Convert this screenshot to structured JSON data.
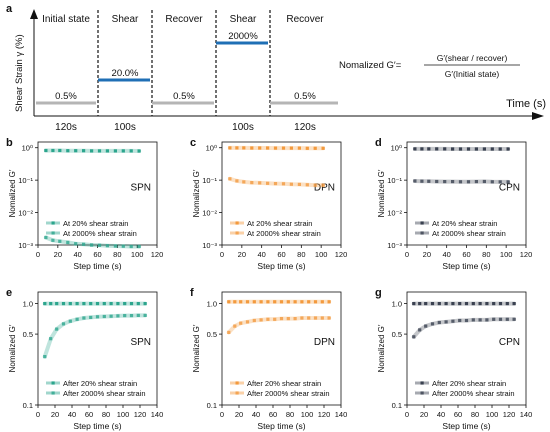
{
  "colors": {
    "spn": "#2ca58d",
    "dpn": "#f39a3e",
    "cpn": "#3a4150",
    "bar_blue": "#1f6fb5",
    "bar_grey": "#b5b5b5"
  },
  "schematic": {
    "panel_label": "a",
    "ylabel": "Shear Strain γ (%)",
    "xlabel": "Time (s)",
    "phases": [
      {
        "name": "Initial state",
        "strain": "0.5%",
        "duration": "120s",
        "level": "low"
      },
      {
        "name": "Shear",
        "strain": "20.0%",
        "duration": "100s",
        "level": "mid"
      },
      {
        "name": "Recover",
        "strain": "0.5%",
        "duration": "",
        "level": "low"
      },
      {
        "name": "Shear",
        "strain": "2000%",
        "duration": "100s",
        "level": "high"
      },
      {
        "name": "Recover",
        "strain": "0.5%",
        "duration": "120s",
        "level": "low"
      }
    ],
    "formula": {
      "left": "Nomalized G′=",
      "numerator": "G′(shear / recover)",
      "denominator": "G′(Initial state)"
    }
  },
  "chart_data": [
    {
      "panel": "b",
      "type": "line",
      "name_label": "SPN",
      "color_key": "spn",
      "xlabel": "Step time (s)",
      "ylabel": "Nomalized G′",
      "yscale": "log",
      "xlim": [
        0,
        120
      ],
      "xticks": [
        0,
        20,
        40,
        60,
        80,
        100,
        120
      ],
      "ylim": [
        0.001,
        1.5
      ],
      "yticks": [
        0.001,
        0.01,
        0.1,
        1
      ],
      "ytick_labels": [
        "10⁻³",
        "10⁻²",
        "10⁻¹",
        "10⁰"
      ],
      "series": [
        {
          "name": "At 20% shear strain",
          "points": [
            [
              8,
              0.82
            ],
            [
              15,
              0.82
            ],
            [
              22,
              0.82
            ],
            [
              30,
              0.81
            ],
            [
              38,
              0.81
            ],
            [
              46,
              0.81
            ],
            [
              54,
              0.8
            ],
            [
              62,
              0.8
            ],
            [
              70,
              0.8
            ],
            [
              78,
              0.8
            ],
            [
              86,
              0.8
            ],
            [
              94,
              0.8
            ],
            [
              102,
              0.79
            ]
          ]
        },
        {
          "name": "At 2000% shear strain",
          "points": [
            [
              8,
              0.0017
            ],
            [
              15,
              0.0014
            ],
            [
              22,
              0.0013
            ],
            [
              30,
              0.0012
            ],
            [
              38,
              0.0011
            ],
            [
              46,
              0.00105
            ],
            [
              54,
              0.001
            ],
            [
              62,
              0.00098
            ],
            [
              70,
              0.00095
            ],
            [
              78,
              0.00093
            ],
            [
              86,
              0.00092
            ],
            [
              94,
              0.0009
            ],
            [
              102,
              0.0009
            ]
          ]
        }
      ]
    },
    {
      "panel": "c",
      "type": "line",
      "name_label": "DPN",
      "color_key": "dpn",
      "xlabel": "Step time (s)",
      "ylabel": "Nomalized G′",
      "yscale": "log",
      "xlim": [
        0,
        120
      ],
      "xticks": [
        0,
        20,
        40,
        60,
        80,
        100,
        120
      ],
      "ylim": [
        0.001,
        1.5
      ],
      "yticks": [
        0.001,
        0.01,
        0.1,
        1
      ],
      "ytick_labels": [
        "10⁻³",
        "10⁻²",
        "10⁻¹",
        "10⁰"
      ],
      "series": [
        {
          "name": "At 20% shear strain",
          "points": [
            [
              8,
              0.99
            ],
            [
              15,
              0.99
            ],
            [
              22,
              0.99
            ],
            [
              30,
              0.98
            ],
            [
              38,
              0.98
            ],
            [
              46,
              0.98
            ],
            [
              54,
              0.97
            ],
            [
              62,
              0.97
            ],
            [
              70,
              0.97
            ],
            [
              78,
              0.97
            ],
            [
              86,
              0.96
            ],
            [
              94,
              0.96
            ],
            [
              102,
              0.96
            ]
          ]
        },
        {
          "name": "At 2000% shear strain",
          "points": [
            [
              8,
              0.11
            ],
            [
              15,
              0.095
            ],
            [
              22,
              0.088
            ],
            [
              30,
              0.084
            ],
            [
              38,
              0.082
            ],
            [
              46,
              0.08
            ],
            [
              54,
              0.078
            ],
            [
              62,
              0.077
            ],
            [
              70,
              0.075
            ],
            [
              78,
              0.074
            ],
            [
              86,
              0.072
            ],
            [
              94,
              0.07
            ],
            [
              102,
              0.07
            ]
          ]
        }
      ]
    },
    {
      "panel": "d",
      "type": "line",
      "name_label": "CPN",
      "color_key": "cpn",
      "xlabel": "Step time (s)",
      "ylabel": "Nomalized G′",
      "yscale": "log",
      "xlim": [
        0,
        120
      ],
      "xticks": [
        0,
        20,
        40,
        60,
        80,
        100,
        120
      ],
      "ylim": [
        0.001,
        1.5
      ],
      "yticks": [
        0.001,
        0.01,
        0.1,
        1
      ],
      "ytick_labels": [
        "10⁻³",
        "10⁻²",
        "10⁻¹",
        "10⁰"
      ],
      "series": [
        {
          "name": "At 20% shear strain",
          "points": [
            [
              8,
              0.92
            ],
            [
              15,
              0.92
            ],
            [
              22,
              0.92
            ],
            [
              30,
              0.92
            ],
            [
              38,
              0.92
            ],
            [
              46,
              0.91
            ],
            [
              54,
              0.91
            ],
            [
              62,
              0.91
            ],
            [
              70,
              0.91
            ],
            [
              78,
              0.91
            ],
            [
              86,
              0.91
            ],
            [
              94,
              0.91
            ],
            [
              102,
              0.91
            ]
          ]
        },
        {
          "name": "At 2000% shear strain",
          "points": [
            [
              8,
              0.094
            ],
            [
              15,
              0.093
            ],
            [
              22,
              0.092
            ],
            [
              30,
              0.091
            ],
            [
              38,
              0.09
            ],
            [
              46,
              0.09
            ],
            [
              54,
              0.089
            ],
            [
              62,
              0.089
            ],
            [
              70,
              0.09
            ],
            [
              78,
              0.091
            ],
            [
              86,
              0.089
            ],
            [
              94,
              0.088
            ],
            [
              102,
              0.088
            ]
          ]
        }
      ]
    },
    {
      "panel": "e",
      "type": "line",
      "name_label": "SPN",
      "color_key": "spn",
      "xlabel": "Step time (s)",
      "ylabel": "Nomalized G′",
      "yscale": "log",
      "xlim": [
        0,
        140
      ],
      "xticks": [
        0,
        20,
        40,
        60,
        80,
        100,
        120,
        140
      ],
      "ylim": [
        0.1,
        1.3
      ],
      "yticks": [
        0.1,
        0.5,
        1
      ],
      "ytick_labels": [
        "0.1",
        "0.5",
        "1.0"
      ],
      "series": [
        {
          "name": "After 20% shear strain",
          "points": [
            [
              8,
              1.0
            ],
            [
              15,
              1.0
            ],
            [
              22,
              1.0
            ],
            [
              30,
              1.0
            ],
            [
              38,
              1.0
            ],
            [
              46,
              1.0
            ],
            [
              54,
              1.0
            ],
            [
              62,
              1.0
            ],
            [
              70,
              1.0
            ],
            [
              78,
              1.0
            ],
            [
              86,
              1.0
            ],
            [
              94,
              1.0
            ],
            [
              102,
              1.0
            ],
            [
              110,
              1.0
            ],
            [
              118,
              1.0
            ],
            [
              126,
              1.0
            ]
          ]
        },
        {
          "name": "After 2000% shear strain",
          "points": [
            [
              8,
              0.3
            ],
            [
              15,
              0.45
            ],
            [
              22,
              0.56
            ],
            [
              30,
              0.63
            ],
            [
              38,
              0.67
            ],
            [
              46,
              0.7
            ],
            [
              54,
              0.72
            ],
            [
              62,
              0.73
            ],
            [
              70,
              0.74
            ],
            [
              78,
              0.745
            ],
            [
              86,
              0.75
            ],
            [
              94,
              0.755
            ],
            [
              102,
              0.76
            ],
            [
              110,
              0.76
            ],
            [
              118,
              0.765
            ],
            [
              126,
              0.765
            ]
          ]
        }
      ]
    },
    {
      "panel": "f",
      "type": "line",
      "name_label": "DPN",
      "color_key": "dpn",
      "xlabel": "Step time (s)",
      "ylabel": "Nomalized G′",
      "yscale": "log",
      "xlim": [
        0,
        140
      ],
      "xticks": [
        0,
        20,
        40,
        60,
        80,
        100,
        120,
        140
      ],
      "ylim": [
        0.1,
        1.3
      ],
      "yticks": [
        0.1,
        0.5,
        1
      ],
      "ytick_labels": [
        "0.1",
        "0.5",
        "1.0"
      ],
      "series": [
        {
          "name": "After 20% shear strain",
          "points": [
            [
              8,
              1.04
            ],
            [
              15,
              1.04
            ],
            [
              22,
              1.04
            ],
            [
              30,
              1.04
            ],
            [
              38,
              1.04
            ],
            [
              46,
              1.04
            ],
            [
              54,
              1.04
            ],
            [
              62,
              1.04
            ],
            [
              70,
              1.04
            ],
            [
              78,
              1.04
            ],
            [
              86,
              1.04
            ],
            [
              94,
              1.04
            ],
            [
              102,
              1.04
            ],
            [
              110,
              1.04
            ],
            [
              118,
              1.04
            ],
            [
              126,
              1.04
            ]
          ]
        },
        {
          "name": "After 2000% shear strain",
          "points": [
            [
              8,
              0.52
            ],
            [
              15,
              0.6
            ],
            [
              22,
              0.64
            ],
            [
              30,
              0.66
            ],
            [
              38,
              0.68
            ],
            [
              46,
              0.69
            ],
            [
              54,
              0.7
            ],
            [
              62,
              0.7
            ],
            [
              70,
              0.71
            ],
            [
              78,
              0.71
            ],
            [
              86,
              0.71
            ],
            [
              94,
              0.72
            ],
            [
              102,
              0.72
            ],
            [
              110,
              0.72
            ],
            [
              118,
              0.72
            ],
            [
              126,
              0.72
            ]
          ]
        }
      ]
    },
    {
      "panel": "g",
      "type": "line",
      "name_label": "CPN",
      "color_key": "cpn",
      "xlabel": "Step time (s)",
      "ylabel": "Nomalized G′",
      "yscale": "log",
      "xlim": [
        0,
        140
      ],
      "xticks": [
        0,
        20,
        40,
        60,
        80,
        100,
        120,
        140
      ],
      "ylim": [
        0.1,
        1.3
      ],
      "yticks": [
        0.1,
        0.5,
        1
      ],
      "ytick_labels": [
        "0.1",
        "0.5",
        "1.0"
      ],
      "series": [
        {
          "name": "After 20% shear strain",
          "points": [
            [
              8,
              1.0
            ],
            [
              15,
              1.0
            ],
            [
              22,
              1.0
            ],
            [
              30,
              1.0
            ],
            [
              38,
              1.0
            ],
            [
              46,
              1.0
            ],
            [
              54,
              1.0
            ],
            [
              62,
              1.0
            ],
            [
              70,
              1.0
            ],
            [
              78,
              1.0
            ],
            [
              86,
              1.0
            ],
            [
              94,
              1.0
            ],
            [
              102,
              1.0
            ],
            [
              110,
              1.0
            ],
            [
              118,
              1.0
            ],
            [
              126,
              1.0
            ]
          ]
        },
        {
          "name": "After 2000% shear strain",
          "points": [
            [
              8,
              0.47
            ],
            [
              15,
              0.55
            ],
            [
              22,
              0.6
            ],
            [
              30,
              0.63
            ],
            [
              38,
              0.65
            ],
            [
              46,
              0.66
            ],
            [
              54,
              0.67
            ],
            [
              62,
              0.68
            ],
            [
              70,
              0.68
            ],
            [
              78,
              0.69
            ],
            [
              86,
              0.69
            ],
            [
              94,
              0.69
            ],
            [
              102,
              0.7
            ],
            [
              110,
              0.7
            ],
            [
              118,
              0.7
            ],
            [
              126,
              0.7
            ]
          ]
        }
      ]
    }
  ]
}
